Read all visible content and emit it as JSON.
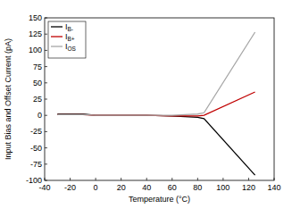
{
  "chart_data": {
    "type": "line",
    "x_label": "Temperature (°C)",
    "y_label": "Input Bias and Offset Current (pA)",
    "x": [
      -30,
      -10,
      0,
      20,
      40,
      60,
      70,
      80,
      85,
      125
    ],
    "series": [
      {
        "name": "IB-",
        "color": "#000000",
        "values": [
          2,
          2,
          0,
          0,
          0,
          -1,
          -2,
          -3,
          -5,
          -92
        ]
      },
      {
        "name": "IB+",
        "color": "#c00000",
        "values": [
          1,
          1,
          0,
          0,
          0,
          -1,
          -1,
          -1,
          0,
          36
        ]
      },
      {
        "name": "IOS",
        "color": "#a6a6a6",
        "values": [
          1,
          1,
          0,
          0,
          0,
          0,
          1,
          2,
          4,
          128
        ]
      }
    ],
    "xlim": [
      -40,
      140
    ],
    "xticks": [
      -40,
      -20,
      0,
      20,
      40,
      60,
      80,
      100,
      120,
      140
    ],
    "ylim": [
      -100,
      150
    ],
    "yticks": [
      -100,
      -75,
      -50,
      -25,
      0,
      25,
      50,
      75,
      100,
      125,
      150
    ],
    "grid": false,
    "legend": "top-left"
  }
}
